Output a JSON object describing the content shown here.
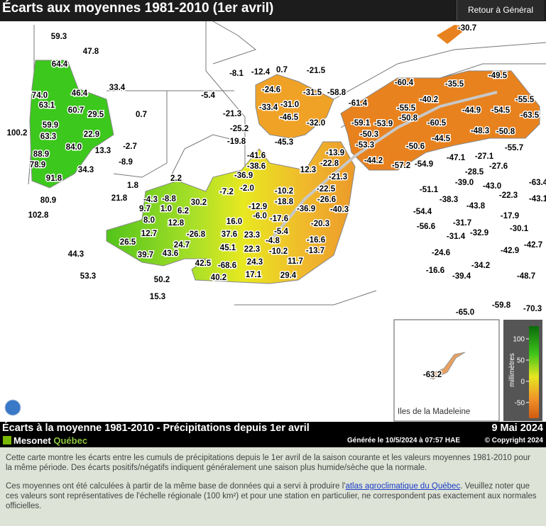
{
  "header": {
    "title": "Écarts aux moyennes 1981-2010 (1er avril)",
    "button": "Retour à Général"
  },
  "map": {
    "station_labels": [
      "59.3",
      "47.8",
      "64.4",
      "33.4",
      "74.0",
      "46.4",
      "63.1",
      "60.7",
      "29.5",
      "0.7",
      "59.9",
      "100.2",
      "63.3",
      "22.9",
      "84.0",
      "13.3",
      "-2.7",
      "88.9",
      "-8.9",
      "78.9",
      "34.3",
      "91.8",
      "2.2",
      "1.8",
      "21.8",
      "80.9",
      "-4.3",
      "-8.8",
      "30.2",
      "9.7",
      "1.0",
      "6.2",
      "102.8",
      "8.0",
      "12.8",
      "12.7",
      "-26.8",
      "26.5",
      "24.7",
      "39.7",
      "43.6",
      "44.3",
      "53.3",
      "50.2",
      "15.3",
      "-8.1",
      "-12.4",
      "0.7",
      "-21.5",
      "-5.4",
      "-24.6",
      "-31.5",
      "-58.8",
      "-33.4",
      "-31.0",
      "-21.3",
      "-46.5",
      "-32.0",
      "-61.4",
      "-25.2",
      "-45.3",
      "-19.8",
      "-59.1",
      "-53.9",
      "-50.3",
      "-53.3",
      "-41.6",
      "-13.9",
      "-38.6",
      "-22.8",
      "-44.2",
      "-57.2",
      "-54.9",
      "12.3",
      "-36.9",
      "-21.3",
      "-7.2",
      "-2.0",
      "-10.2",
      "-22.5",
      "-26.6",
      "-18.8",
      "-40.3",
      "-12.9",
      "-36.9",
      "16.0",
      "-6.0",
      "-17.6",
      "-20.3",
      "37.6",
      "23.3",
      "-5.4",
      "-4.8",
      "-16.6",
      "45.1",
      "22.3",
      "-10.2",
      "-13.7",
      "42.5",
      "-68.6",
      "24.3",
      "11.7",
      "40.2",
      "17.1",
      "29.4",
      "-30.7",
      "-60.4",
      "-35.5",
      "-49.5",
      "-40.2",
      "-55.5",
      "-55.5",
      "-44.9",
      "-54.5",
      "-63.5",
      "-50.8",
      "-60.5",
      "-48.3",
      "-50.8",
      "-44.5",
      "-50.6",
      "-55.7",
      "-47.1",
      "-27.1",
      "-28.5",
      "-27.6",
      "-39.0",
      "-43.0",
      "-63.4",
      "-51.1",
      "-22.3",
      "-38.3",
      "-43.1",
      "-43.8",
      "-54.4",
      "-17.9",
      "-56.6",
      "-31.7",
      "-30.1",
      "-31.4",
      "-32.9",
      "-42.7",
      "-24.6",
      "-42.9",
      "-34.2",
      "-16.6",
      "-39.4",
      "-48.7",
      "-59.8",
      "-70.3",
      "-65.0",
      "-63.2"
    ],
    "inset_label": "Iles de la Madeleine"
  },
  "legend": {
    "unit": "millimètres",
    "ticks": [
      100,
      50,
      0,
      -50
    ],
    "lim": [
      -87,
      130
    ]
  },
  "footer": {
    "title": "Écarts à la moyenne 1981-2010 - Précipitations depuis 1er avril",
    "date": "9 Mai 2024",
    "brand_1": "Mesonet",
    "brand_2": "Québec",
    "generated": "Générée le 10/5/2024 à 07:57 HAE",
    "copyright": "© Copyright 2024"
  },
  "description": {
    "p1": "Cette carte montre les écarts entre les cumuls de précipitations depuis le 1er avril de la saison courante et les valeurs moyennes 1981-2010 pour la même période. Des écarts positifs/négatifs indiquent généralement une saison plus humide/sèche que la normale.",
    "p2_before": "Ces moyennes ont été calculées à partir de la même base de données qui a servi à produire l'",
    "link": "atlas agroclimatique du Québec",
    "p2_after": ". Veuillez noter que ces valeurs sont représentatives de l'échelle régionale (100 km²) et pour une station en particulier, ne correspondent pas exactement aux normales officielles."
  }
}
